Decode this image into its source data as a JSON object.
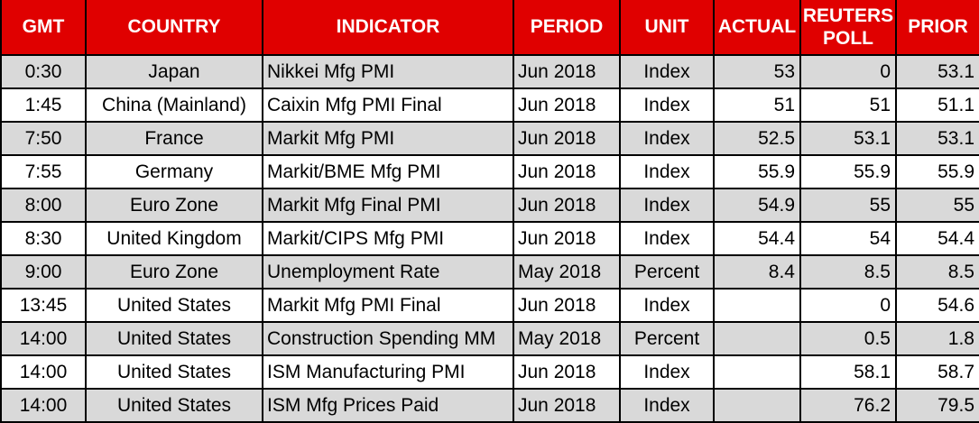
{
  "chart_data": {
    "type": "table",
    "columns": [
      "GMT",
      "COUNTRY",
      "INDICATOR",
      "PERIOD",
      "UNIT",
      "ACTUAL",
      "REUTERS POLL",
      "PRIOR"
    ],
    "rows": [
      [
        "0:30",
        "Japan",
        "Nikkei Mfg PMI",
        "Jun 2018",
        "Index",
        "53",
        "0",
        "53.1"
      ],
      [
        "1:45",
        "China (Mainland)",
        "Caixin Mfg PMI Final",
        "Jun 2018",
        "Index",
        "51",
        "51",
        "51.1"
      ],
      [
        "7:50",
        "France",
        "Markit Mfg PMI",
        "Jun 2018",
        "Index",
        "52.5",
        "53.1",
        "53.1"
      ],
      [
        "7:55",
        "Germany",
        "Markit/BME Mfg PMI",
        "Jun 2018",
        "Index",
        "55.9",
        "55.9",
        "55.9"
      ],
      [
        "8:00",
        "Euro Zone",
        "Markit Mfg Final PMI",
        "Jun 2018",
        "Index",
        "54.9",
        "55",
        "55"
      ],
      [
        "8:30",
        "United Kingdom",
        "Markit/CIPS Mfg PMI",
        "Jun 2018",
        "Index",
        "54.4",
        "54",
        "54.4"
      ],
      [
        "9:00",
        "Euro Zone",
        "Unemployment Rate",
        "May 2018",
        "Percent",
        "8.4",
        "8.5",
        "8.5"
      ],
      [
        "13:45",
        "United States",
        "Markit Mfg PMI Final",
        "Jun 2018",
        "Index",
        "",
        "0",
        "54.6"
      ],
      [
        "14:00",
        "United States",
        "Construction Spending MM",
        "May 2018",
        "Percent",
        "",
        "0.5",
        "1.8"
      ],
      [
        "14:00",
        "United States",
        "ISM Manufacturing PMI",
        "Jun 2018",
        "Index",
        "",
        "58.1",
        "58.7"
      ],
      [
        "14:00",
        "United States",
        "ISM Mfg Prices Paid",
        "Jun 2018",
        "Index",
        "",
        "76.2",
        "79.5"
      ]
    ]
  },
  "colors": {
    "header_bg": "#e00000",
    "header_text": "#ffffff",
    "row_alt_bg": "#d9d9d9",
    "row_bg": "#ffffff",
    "grid_border": "#000000",
    "cell_text": "#000000"
  }
}
